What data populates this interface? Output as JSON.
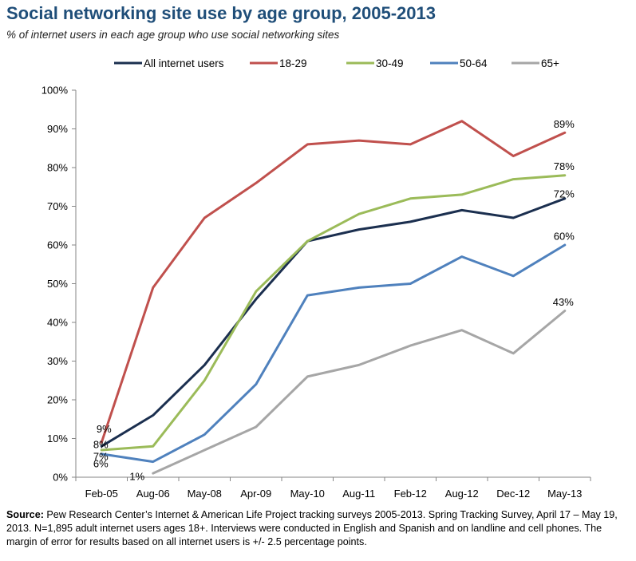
{
  "title": "Social networking site use by age group, 2005-2013",
  "subtitle": "% of internet users in each age group who use social networking sites",
  "source": {
    "label": "Source:",
    "text": " Pew Research Center’s Internet & American Life Project tracking surveys 2005-2013. Spring Tracking Survey, April 17 – May 19, 2013. N=1,895 adult internet users ages 18+. Interviews were conducted in English and Spanish and on landline and cell phones.  The margin of error for results based on all internet users is +/- 2.5 percentage points."
  },
  "chart_data": {
    "type": "line",
    "x": [
      "Feb-05",
      "Aug-06",
      "May-08",
      "Apr-09",
      "May-10",
      "Aug-11",
      "Feb-12",
      "Aug-12",
      "Dec-12",
      "May-13"
    ],
    "ylim": [
      0,
      100
    ],
    "yticks": [
      "0%",
      "10%",
      "20%",
      "30%",
      "40%",
      "50%",
      "60%",
      "70%",
      "80%",
      "90%",
      "100%"
    ],
    "grid": "vertical-none",
    "legend_position": "top",
    "series": [
      {
        "name": "All internet users",
        "color": "#1b2f4f",
        "values": [
          8,
          16,
          29,
          46,
          61,
          64,
          66,
          69,
          67,
          72
        ]
      },
      {
        "name": "18-29",
        "color": "#c0504d",
        "values": [
          9,
          49,
          67,
          76,
          86,
          87,
          86,
          92,
          83,
          89
        ]
      },
      {
        "name": "30-49",
        "color": "#9bbb59",
        "values": [
          7,
          8,
          25,
          48,
          61,
          68,
          72,
          73,
          77,
          78
        ]
      },
      {
        "name": "50-64",
        "color": "#4f81bd",
        "values": [
          6,
          4,
          11,
          24,
          47,
          49,
          50,
          57,
          52,
          60
        ]
      },
      {
        "name": "65+",
        "color": "#a6a6a6",
        "values": [
          null,
          1,
          7,
          13,
          26,
          29,
          34,
          38,
          32,
          43
        ]
      }
    ],
    "annotations": [
      {
        "series": 1,
        "point": 0,
        "text": "9%"
      },
      {
        "series": 0,
        "point": 0,
        "text": "8%"
      },
      {
        "series": 2,
        "point": 0,
        "text": "7%"
      },
      {
        "series": 3,
        "point": 0,
        "text": "6%"
      },
      {
        "series": 4,
        "point": 1,
        "text": "1%"
      },
      {
        "series": 1,
        "point": 9,
        "text": "89%"
      },
      {
        "series": 2,
        "point": 9,
        "text": "78%"
      },
      {
        "series": 0,
        "point": 9,
        "text": "72%"
      },
      {
        "series": 3,
        "point": 9,
        "text": "60%"
      },
      {
        "series": 4,
        "point": 9,
        "text": "43%"
      }
    ]
  }
}
